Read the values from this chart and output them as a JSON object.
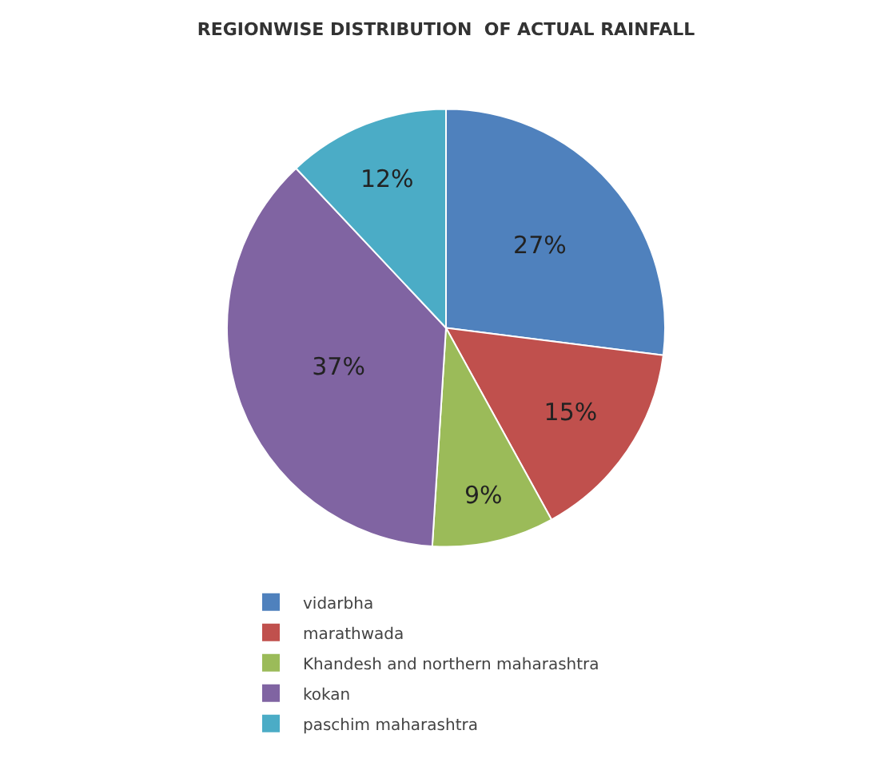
{
  "chart_data": {
    "type": "pie",
    "title": "REGIONWISE DISTRIBUTION  OF ACTUAL RAINFALL",
    "categories": [
      "vidarbha",
      "marathwada",
      "Khandesh and northern maharashtra",
      "kokan",
      "paschim maharashtra"
    ],
    "values": [
      27,
      15,
      9,
      37,
      12
    ],
    "value_labels": [
      "27%",
      "15%",
      "9%",
      "37%",
      "12%"
    ],
    "colors": [
      "#4f81bd",
      "#c0504d",
      "#9bbb59",
      "#8064a2",
      "#4bacc6"
    ],
    "legend": "bottom"
  }
}
